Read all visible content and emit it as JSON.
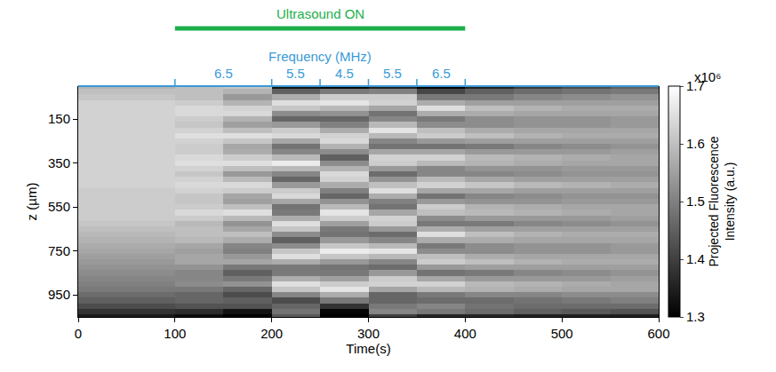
{
  "chart_data": {
    "type": "heatmap",
    "xlabel": "Time(s)",
    "ylabel": "z (µm)",
    "xlim": [
      0,
      600
    ],
    "xticks": [
      0,
      100,
      200,
      300,
      400,
      500,
      600
    ],
    "ylim": [
      1050,
      0
    ],
    "yticks": [
      150,
      350,
      550,
      750,
      950
    ],
    "grid": false,
    "x": [
      0,
      100,
      150,
      200,
      250,
      300,
      350,
      400,
      450,
      500,
      550,
      600
    ],
    "y": [
      0,
      25,
      50,
      75,
      100,
      125,
      150,
      175,
      200,
      225,
      250,
      275,
      300,
      325,
      350,
      375,
      400,
      425,
      450,
      475,
      500,
      525,
      550,
      575,
      600,
      625,
      650,
      675,
      700,
      725,
      750,
      775,
      800,
      825,
      850,
      875,
      900,
      925,
      950,
      975,
      1000,
      1025,
      1050
    ],
    "values": [
      [
        1.58,
        1.6,
        1.61,
        1.33,
        1.31,
        1.35,
        1.29,
        1.35,
        1.39,
        1.42,
        1.45
      ],
      [
        1.6,
        1.6,
        1.58,
        1.45,
        1.49,
        1.5,
        1.41,
        1.45,
        1.47,
        1.48,
        1.49
      ],
      [
        1.61,
        1.6,
        1.54,
        1.57,
        1.62,
        1.62,
        1.49,
        1.49,
        1.51,
        1.52,
        1.53
      ],
      [
        1.63,
        1.62,
        1.58,
        1.65,
        1.66,
        1.63,
        1.57,
        1.55,
        1.55,
        1.55,
        1.55
      ],
      [
        1.63,
        1.64,
        1.63,
        1.61,
        1.59,
        1.56,
        1.65,
        1.6,
        1.58,
        1.57,
        1.57
      ],
      [
        1.63,
        1.64,
        1.64,
        1.52,
        1.53,
        1.48,
        1.57,
        1.57,
        1.56,
        1.56,
        1.56
      ],
      [
        1.63,
        1.62,
        1.58,
        1.46,
        1.46,
        1.51,
        1.49,
        1.52,
        1.53,
        1.53,
        1.54
      ],
      [
        1.63,
        1.61,
        1.55,
        1.54,
        1.5,
        1.59,
        1.52,
        1.52,
        1.53,
        1.53,
        1.54
      ],
      [
        1.63,
        1.63,
        1.6,
        1.62,
        1.57,
        1.66,
        1.6,
        1.57,
        1.56,
        1.56,
        1.56
      ],
      [
        1.63,
        1.65,
        1.65,
        1.64,
        1.63,
        1.59,
        1.62,
        1.6,
        1.58,
        1.57,
        1.57
      ],
      [
        1.63,
        1.63,
        1.61,
        1.56,
        1.64,
        1.51,
        1.54,
        1.55,
        1.55,
        1.55,
        1.55
      ],
      [
        1.63,
        1.62,
        1.56,
        1.48,
        1.58,
        1.48,
        1.48,
        1.49,
        1.51,
        1.52,
        1.53
      ],
      [
        1.63,
        1.62,
        1.57,
        1.51,
        1.52,
        1.56,
        1.56,
        1.54,
        1.54,
        1.54,
        1.55
      ],
      [
        1.63,
        1.64,
        1.62,
        1.59,
        1.45,
        1.63,
        1.63,
        1.59,
        1.58,
        1.57,
        1.56
      ],
      [
        1.63,
        1.65,
        1.65,
        1.67,
        1.52,
        1.62,
        1.59,
        1.58,
        1.57,
        1.56,
        1.56
      ],
      [
        1.63,
        1.63,
        1.6,
        1.59,
        1.58,
        1.54,
        1.51,
        1.53,
        1.53,
        1.54,
        1.54
      ],
      [
        1.63,
        1.61,
        1.54,
        1.51,
        1.64,
        1.47,
        1.51,
        1.51,
        1.52,
        1.53,
        1.53
      ],
      [
        1.63,
        1.63,
        1.59,
        1.46,
        1.63,
        1.53,
        1.59,
        1.56,
        1.55,
        1.55,
        1.55
      ],
      [
        1.63,
        1.64,
        1.64,
        1.54,
        1.57,
        1.6,
        1.63,
        1.61,
        1.59,
        1.58,
        1.57
      ],
      [
        1.62,
        1.63,
        1.62,
        1.62,
        1.5,
        1.65,
        1.56,
        1.56,
        1.55,
        1.55,
        1.55
      ],
      [
        1.62,
        1.61,
        1.56,
        1.64,
        1.46,
        1.57,
        1.48,
        1.51,
        1.52,
        1.53,
        1.53
      ],
      [
        1.62,
        1.61,
        1.55,
        1.56,
        1.53,
        1.5,
        1.54,
        1.53,
        1.53,
        1.54,
        1.54
      ],
      [
        1.62,
        1.62,
        1.6,
        1.48,
        1.59,
        1.48,
        1.62,
        1.58,
        1.57,
        1.56,
        1.56
      ],
      [
        1.62,
        1.64,
        1.65,
        1.49,
        1.66,
        1.56,
        1.6,
        1.59,
        1.58,
        1.57,
        1.56
      ],
      [
        1.62,
        1.62,
        1.59,
        1.57,
        1.62,
        1.63,
        1.52,
        1.54,
        1.54,
        1.54,
        1.55
      ],
      [
        1.61,
        1.59,
        1.53,
        1.65,
        1.55,
        1.62,
        1.49,
        1.49,
        1.51,
        1.52,
        1.53
      ],
      [
        1.6,
        1.6,
        1.56,
        1.61,
        1.49,
        1.54,
        1.57,
        1.55,
        1.55,
        1.55,
        1.55
      ],
      [
        1.59,
        1.6,
        1.6,
        1.52,
        1.48,
        1.47,
        1.65,
        1.6,
        1.58,
        1.57,
        1.57
      ],
      [
        1.58,
        1.59,
        1.57,
        1.45,
        1.54,
        1.51,
        1.57,
        1.57,
        1.56,
        1.56,
        1.56
      ],
      [
        1.57,
        1.56,
        1.51,
        1.52,
        1.61,
        1.59,
        1.49,
        1.52,
        1.53,
        1.53,
        1.54
      ],
      [
        1.56,
        1.55,
        1.5,
        1.61,
        1.67,
        1.66,
        1.52,
        1.52,
        1.53,
        1.53,
        1.54
      ],
      [
        1.55,
        1.56,
        1.54,
        1.65,
        1.61,
        1.59,
        1.6,
        1.57,
        1.56,
        1.56,
        1.56
      ],
      [
        1.54,
        1.56,
        1.56,
        1.57,
        1.54,
        1.51,
        1.62,
        1.6,
        1.58,
        1.57,
        1.57
      ],
      [
        1.53,
        1.53,
        1.49,
        1.49,
        1.48,
        1.47,
        1.54,
        1.55,
        1.55,
        1.55,
        1.55
      ],
      [
        1.52,
        1.51,
        1.45,
        1.49,
        1.49,
        1.54,
        1.48,
        1.49,
        1.51,
        1.52,
        1.53
      ],
      [
        1.51,
        1.51,
        1.49,
        1.57,
        1.55,
        1.62,
        1.56,
        1.54,
        1.54,
        1.54,
        1.55
      ],
      [
        1.5,
        1.52,
        1.53,
        1.65,
        1.62,
        1.63,
        1.63,
        1.59,
        1.58,
        1.57,
        1.56
      ],
      [
        1.49,
        1.49,
        1.46,
        1.61,
        1.66,
        1.56,
        1.59,
        1.58,
        1.57,
        1.56,
        1.56
      ],
      [
        1.47,
        1.46,
        1.42,
        1.51,
        1.57,
        1.46,
        1.49,
        1.51,
        1.51,
        1.52,
        1.52
      ],
      [
        1.45,
        1.46,
        1.45,
        1.42,
        1.49,
        1.46,
        1.47,
        1.47,
        1.48,
        1.49,
        1.5
      ],
      [
        1.42,
        1.43,
        1.43,
        1.46,
        1.38,
        1.49,
        1.51,
        1.48,
        1.47,
        1.47,
        1.47
      ],
      [
        1.38,
        1.37,
        1.33,
        1.48,
        1.31,
        1.51,
        1.49,
        1.47,
        1.45,
        1.44,
        1.43
      ],
      [
        1.34,
        1.32,
        1.3,
        1.44,
        1.3,
        1.4,
        1.36,
        1.36,
        1.35,
        1.35,
        1.35
      ]
    ],
    "colorbar": {
      "title": "Projected Fluorescence Intensity (a.u.)",
      "exponent_label": "x10⁶",
      "range": [
        1.3,
        1.7
      ],
      "ticks": [
        1.3,
        1.4,
        1.5,
        1.6,
        1.7
      ],
      "colors": [
        "#000000",
        "#ffffff"
      ]
    },
    "ultrasound": {
      "text": "Ultrasound ON",
      "start": 100,
      "end": 400,
      "color": "#1db04b"
    },
    "frequency": {
      "title": "Frequency (MHz)",
      "boundaries": [
        100,
        200,
        250,
        300,
        350,
        400
      ],
      "values": [
        6.5,
        5.5,
        4.5,
        5.5,
        6.5
      ],
      "color": "#3a9ad6"
    }
  }
}
